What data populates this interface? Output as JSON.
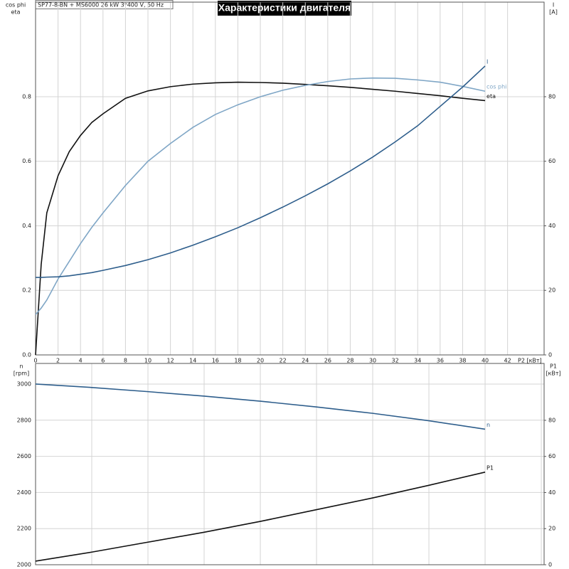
{
  "chart_data": [
    {
      "type": "line",
      "title": "Характеристики двигателя",
      "subtitle": "SP77-8-BN + MS6000   26 kW   3*400 V, 50 Hz",
      "xlabel": "P2 [кВт]",
      "ylabel": [
        "cos phi",
        "eta"
      ],
      "y2label": [
        "I",
        "[A]"
      ],
      "x": [
        0,
        0.5,
        1,
        2,
        3,
        4,
        5,
        6,
        8,
        10,
        12,
        14,
        16,
        18,
        20,
        22,
        24,
        26,
        28,
        30,
        32,
        34,
        36,
        38,
        40
      ],
      "xlim": [
        0,
        45.25
      ],
      "xticks": [
        0,
        2,
        4,
        6,
        8,
        10,
        12,
        14,
        16,
        18,
        20,
        22,
        24,
        26,
        28,
        30,
        32,
        34,
        36,
        38,
        40,
        42
      ],
      "ylim": [
        0,
        1.093
      ],
      "yticks": [
        {
          "value": 0,
          "label": "0.0"
        },
        0.2,
        0.4,
        0.6,
        0.8
      ],
      "y2lim": [
        0,
        109.3
      ],
      "y2ticks": [
        0,
        20,
        40,
        60,
        80
      ],
      "grid": true,
      "series": [
        {
          "name": "eta",
          "color": "#111111",
          "values": [
            0,
            0.28,
            0.44,
            0.555,
            0.63,
            0.68,
            0.72,
            0.747,
            0.795,
            0.818,
            0.831,
            0.839,
            0.843,
            0.845,
            0.844,
            0.842,
            0.838,
            0.834,
            0.829,
            0.823,
            0.817,
            0.81,
            0.803,
            0.795,
            0.788
          ]
        },
        {
          "name": "cos phi",
          "color": "#7fa6c6",
          "values": [
            0.125,
            0.145,
            0.17,
            0.235,
            0.29,
            0.345,
            0.395,
            0.44,
            0.525,
            0.6,
            0.655,
            0.705,
            0.745,
            0.775,
            0.8,
            0.82,
            0.835,
            0.847,
            0.855,
            0.858,
            0.857,
            0.852,
            0.845,
            0.832,
            0.817
          ]
        },
        {
          "name": "I",
          "color": "#2e5e8c",
          "axis": "y2",
          "values": [
            24,
            24,
            24.1,
            24.2,
            24.5,
            25,
            25.5,
            26.2,
            27.7,
            29.5,
            31.6,
            34,
            36.6,
            39.4,
            42.5,
            45.8,
            49.3,
            53,
            57,
            61.3,
            66,
            71,
            77,
            83,
            89.5
          ]
        }
      ]
    },
    {
      "type": "line",
      "ylabel": [
        "n",
        "[rpm]"
      ],
      "y2label": [
        "P1",
        "[кВт]"
      ],
      "x": [
        0,
        5,
        10,
        15,
        20,
        25,
        30,
        35,
        40
      ],
      "xlim": [
        0,
        45.25
      ],
      "xticks": [
        0,
        5,
        10,
        15,
        20,
        25,
        30,
        35,
        40,
        45
      ],
      "xtick_labels": false,
      "ylim": [
        2000,
        3114
      ],
      "yticks": [
        2000,
        2200,
        2400,
        2600,
        2800,
        3000
      ],
      "y2lim": [
        0,
        111.5
      ],
      "y2ticks": [
        0,
        20,
        40,
        60,
        80
      ],
      "grid": true,
      "series": [
        {
          "name": "n",
          "color": "#2e5e8c",
          "values": [
            3000,
            2981,
            2958,
            2933,
            2905,
            2873,
            2838,
            2797,
            2750
          ]
        },
        {
          "name": "P1",
          "color": "#111111",
          "axis": "y2",
          "values": [
            2,
            7,
            12.5,
            18,
            24,
            30.5,
            37,
            44,
            51.3
          ]
        }
      ]
    }
  ]
}
